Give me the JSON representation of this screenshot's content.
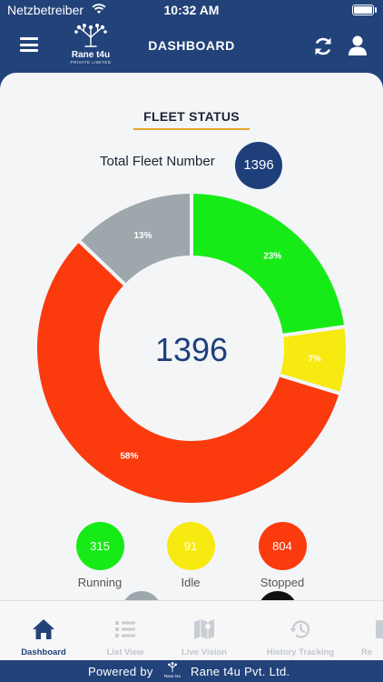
{
  "status_bar": {
    "carrier": "Netzbetreiber",
    "time": "10:32 AM"
  },
  "app_bar": {
    "title": "DASHBOARD",
    "logo_name": "Rane t4u",
    "logo_sub": "PRIVATE LIMITED"
  },
  "fleet": {
    "section_title": "FLEET STATUS",
    "total_label": "Total Fleet Number",
    "total_value": "1396"
  },
  "chart_data": {
    "type": "pie",
    "center_label": "1396",
    "slices": [
      {
        "label": "23%",
        "value": 23,
        "color": "#17eb17"
      },
      {
        "label": "7%",
        "value": 7,
        "color": "#f7ea10"
      },
      {
        "label": "58%",
        "value": 58,
        "color": "#fb3a0d"
      },
      {
        "label": "13%",
        "value": 13,
        "color": "#9ea7ac"
      }
    ]
  },
  "status": [
    {
      "value": "315",
      "label": "Running",
      "color": "#17eb17"
    },
    {
      "value": "91",
      "label": "Idle",
      "color": "#f7ea10"
    },
    {
      "value": "804",
      "label": "Stopped",
      "color": "#fb3a0d"
    }
  ],
  "tabs": [
    {
      "label": "Dashboard",
      "icon": "home-icon"
    },
    {
      "label": "List View",
      "icon": "list-icon"
    },
    {
      "label": "Live Vision",
      "icon": "map-icon"
    },
    {
      "label": "History Tracking",
      "icon": "history-icon"
    },
    {
      "label": "Re",
      "icon": "report-icon"
    }
  ],
  "footer": {
    "powered_by": "Powered by",
    "logo_name": "Rane t4u",
    "company": "Rane t4u Pvt. Ltd."
  },
  "colors": {
    "primary": "#22427a",
    "accent": "#e3a72f",
    "background": "#f3f5f7"
  }
}
